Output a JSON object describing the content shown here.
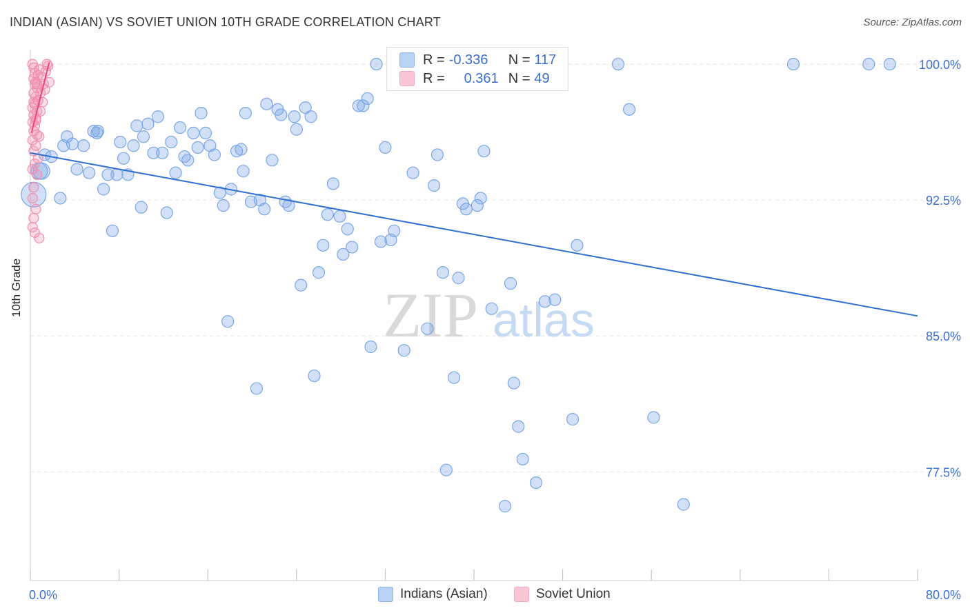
{
  "title": "INDIAN (ASIAN) VS SOVIET UNION 10TH GRADE CORRELATION CHART",
  "source": "Source: ZipAtlas.com",
  "watermark": {
    "zip": "ZIP",
    "atlas": "atlas"
  },
  "legend_stats": [
    {
      "r_label": "R = ",
      "r_value": "-0.336",
      "n_label": "N = ",
      "n_value": "117",
      "color": "#8fb4e8"
    },
    {
      "r_label": "R = ",
      "r_value": "0.361",
      "n_label": "N = ",
      "n_value": "49",
      "color": "#f5a9c0"
    }
  ],
  "legend_bottom": [
    {
      "label": "Indians (Asian)",
      "color": "#b9d1f5"
    },
    {
      "label": "Soviet Union",
      "color": "#f9c6d5"
    }
  ],
  "chart_data": {
    "type": "scatter",
    "xlabel": "",
    "ylabel": "10th Grade",
    "xlim": [
      0,
      80
    ],
    "ylim": [
      71.5,
      100.8
    ],
    "x_tick_labels": [
      {
        "value": 0,
        "label": "0.0%"
      },
      {
        "value": 80,
        "label": "80.0%"
      }
    ],
    "y_tick_labels": [
      {
        "value": 100,
        "label": "100.0%"
      },
      {
        "value": 92.5,
        "label": "92.5%"
      },
      {
        "value": 85,
        "label": "85.0%"
      },
      {
        "value": 77.5,
        "label": "77.5%"
      }
    ],
    "grid": true,
    "series": [
      {
        "name": "Indians (Asian)",
        "color": "#7aa6e6",
        "line_color": "#2f6fd0",
        "trend": [
          [
            0,
            95.1
          ],
          [
            80,
            86.1
          ]
        ],
        "points": [
          [
            0.3,
            92.8
          ],
          [
            0.8,
            94.1
          ],
          [
            1.0,
            94.1
          ],
          [
            1.3,
            95.0
          ],
          [
            1.9,
            94.9
          ],
          [
            2.7,
            92.6
          ],
          [
            3.0,
            95.5
          ],
          [
            3.3,
            96.0
          ],
          [
            3.8,
            95.6
          ],
          [
            4.2,
            94.2
          ],
          [
            4.8,
            95.5
          ],
          [
            5.3,
            94.0
          ],
          [
            5.7,
            96.3
          ],
          [
            6.1,
            96.3
          ],
          [
            6.6,
            93.1
          ],
          [
            7.0,
            93.9
          ],
          [
            7.4,
            90.8
          ],
          [
            7.8,
            93.9
          ],
          [
            8.1,
            95.7
          ],
          [
            8.4,
            94.8
          ],
          [
            8.8,
            93.9
          ],
          [
            9.3,
            95.5
          ],
          [
            9.6,
            96.6
          ],
          [
            10.0,
            92.1
          ],
          [
            10.2,
            96.0
          ],
          [
            10.6,
            96.7
          ],
          [
            11.1,
            95.1
          ],
          [
            11.5,
            97.1
          ],
          [
            11.9,
            95.1
          ],
          [
            12.3,
            91.8
          ],
          [
            12.7,
            95.7
          ],
          [
            13.1,
            94.0
          ],
          [
            13.5,
            96.5
          ],
          [
            13.9,
            94.9
          ],
          [
            14.2,
            94.7
          ],
          [
            14.7,
            96.2
          ],
          [
            15.1,
            95.4
          ],
          [
            15.4,
            97.3
          ],
          [
            15.8,
            96.2
          ],
          [
            16.2,
            95.5
          ],
          [
            16.6,
            95.0
          ],
          [
            17.1,
            92.9
          ],
          [
            17.4,
            92.2
          ],
          [
            17.8,
            85.8
          ],
          [
            18.1,
            93.1
          ],
          [
            18.6,
            95.2
          ],
          [
            19.0,
            95.3
          ],
          [
            19.2,
            94.1
          ],
          [
            19.4,
            97.3
          ],
          [
            19.9,
            92.4
          ],
          [
            20.4,
            82.1
          ],
          [
            20.7,
            92.5
          ],
          [
            21.1,
            92.0
          ],
          [
            21.3,
            97.8
          ],
          [
            21.8,
            94.7
          ],
          [
            22.3,
            97.5
          ],
          [
            22.6,
            97.2
          ],
          [
            23.0,
            92.4
          ],
          [
            23.3,
            92.2
          ],
          [
            23.8,
            97.1
          ],
          [
            24.0,
            96.4
          ],
          [
            24.4,
            87.8
          ],
          [
            24.8,
            97.6
          ],
          [
            25.3,
            97.1
          ],
          [
            25.6,
            82.8
          ],
          [
            26.0,
            88.5
          ],
          [
            26.4,
            90.0
          ],
          [
            26.8,
            91.7
          ],
          [
            27.3,
            93.4
          ],
          [
            27.9,
            91.6
          ],
          [
            28.2,
            89.5
          ],
          [
            28.6,
            90.9
          ],
          [
            29.0,
            89.9
          ],
          [
            29.6,
            97.7
          ],
          [
            30.0,
            97.7
          ],
          [
            30.4,
            98.1
          ],
          [
            30.7,
            84.4
          ],
          [
            31.2,
            100.0
          ],
          [
            31.6,
            90.2
          ],
          [
            32.0,
            95.4
          ],
          [
            32.5,
            90.3
          ],
          [
            32.8,
            90.8
          ],
          [
            33.7,
            84.2
          ],
          [
            34.5,
            94.0
          ],
          [
            35.8,
            85.4
          ],
          [
            36.4,
            93.3
          ],
          [
            36.7,
            95.0
          ],
          [
            37.2,
            88.5
          ],
          [
            37.5,
            77.6
          ],
          [
            38.2,
            82.7
          ],
          [
            38.6,
            88.2
          ],
          [
            39.0,
            92.3
          ],
          [
            39.3,
            92.0
          ],
          [
            40.3,
            92.2
          ],
          [
            40.6,
            92.6
          ],
          [
            40.9,
            95.2
          ],
          [
            41.6,
            86.5
          ],
          [
            42.8,
            75.6
          ],
          [
            43.3,
            87.9
          ],
          [
            43.6,
            82.4
          ],
          [
            44.0,
            80.0
          ],
          [
            44.4,
            78.2
          ],
          [
            45.6,
            76.9
          ],
          [
            46.4,
            86.9
          ],
          [
            47.3,
            87.0
          ],
          [
            48.9,
            80.4
          ],
          [
            49.3,
            90.0
          ],
          [
            53.0,
            100.0
          ],
          [
            54.0,
            97.5
          ],
          [
            56.2,
            80.5
          ],
          [
            58.9,
            75.7
          ],
          [
            68.8,
            100.0
          ],
          [
            75.6,
            100.0
          ],
          [
            77.5,
            100.0
          ],
          [
            6.0,
            96.2
          ]
        ]
      },
      {
        "name": "Soviet Union",
        "color": "#f08fae",
        "line_color": "#e8467a",
        "trend": [
          [
            0.1,
            96.2
          ],
          [
            1.7,
            100.1
          ]
        ],
        "points": [
          [
            0.2,
            100.0
          ],
          [
            0.3,
            99.8
          ],
          [
            0.4,
            99.5
          ],
          [
            0.3,
            99.2
          ],
          [
            0.5,
            99.0
          ],
          [
            0.6,
            98.7
          ],
          [
            0.3,
            98.4
          ],
          [
            0.5,
            98.2
          ],
          [
            0.7,
            98.0
          ],
          [
            0.4,
            97.8
          ],
          [
            0.2,
            97.6
          ],
          [
            0.6,
            97.4
          ],
          [
            0.3,
            97.2
          ],
          [
            0.5,
            97.0
          ],
          [
            0.2,
            96.8
          ],
          [
            0.4,
            96.6
          ],
          [
            0.3,
            96.3
          ],
          [
            0.6,
            96.1
          ],
          [
            0.2,
            95.8
          ],
          [
            0.5,
            95.5
          ],
          [
            0.3,
            95.2
          ],
          [
            0.7,
            94.8
          ],
          [
            0.4,
            94.5
          ],
          [
            0.2,
            94.2
          ],
          [
            0.6,
            93.9
          ],
          [
            0.3,
            93.2
          ],
          [
            0.2,
            92.6
          ],
          [
            0.5,
            92.0
          ],
          [
            0.3,
            91.5
          ],
          [
            0.2,
            91.0
          ],
          [
            0.4,
            90.7
          ],
          [
            0.8,
            90.4
          ],
          [
            1.0,
            99.3
          ],
          [
            1.2,
            98.9
          ],
          [
            1.4,
            99.6
          ],
          [
            1.6,
            99.9
          ],
          [
            1.7,
            99.0
          ],
          [
            0.9,
            98.4
          ],
          [
            1.1,
            97.9
          ],
          [
            0.8,
            99.7
          ],
          [
            1.3,
            98.6
          ],
          [
            0.6,
            98.9
          ],
          [
            0.9,
            97.4
          ],
          [
            0.4,
            98.9
          ],
          [
            0.7,
            99.4
          ],
          [
            1.5,
            100.0
          ],
          [
            0.3,
            97.9
          ],
          [
            0.5,
            96.9
          ],
          [
            0.8,
            96.0
          ]
        ]
      }
    ]
  }
}
